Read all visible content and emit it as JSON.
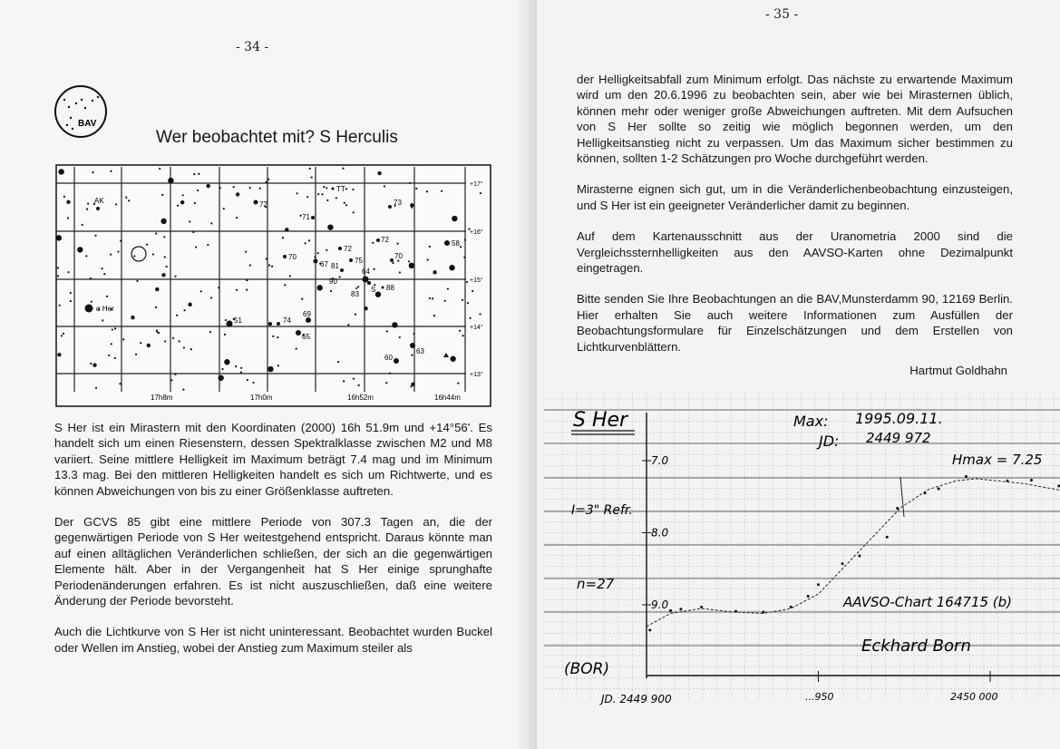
{
  "left_page": {
    "page_number": "- 34 -",
    "logo": {
      "text": "BAV"
    },
    "title": "Wer beobachtet mit?  S Herculis",
    "star_chart": {
      "dec_labels": [
        "+17°",
        "+16°",
        "+15°",
        "+14°",
        "+13°"
      ],
      "ra_labels": [
        "17h8m",
        "17h0m",
        "16h52m",
        "16h44m"
      ],
      "star_labels": [
        "AK",
        "72",
        "TT",
        "73",
        "71",
        "72",
        "58",
        "72",
        "70",
        "67",
        "75",
        "70",
        "81",
        "64",
        "90",
        "S",
        "83",
        "88",
        "α Her",
        "51",
        "74",
        "69",
        "65",
        "63",
        "60"
      ]
    },
    "paragraphs": [
      "S Her ist ein Mirastern mit den Koordinaten (2000) 16h 51.9m und +14°56'. Es handelt sich um einen Riesenstern, dessen Spektralklasse zwischen M2 und M8 variiert. Seine mittlere Helligkeit im Maximum beträgt 7.4 mag und im Minimum 13.3 mag. Bei den mittleren Helligkeiten handelt es sich um Richtwerte, und es können Abweichungen von bis zu einer Größenklasse auftreten.",
      "Der GCVS 85 gibt eine mittlere Periode von 307.3 Tagen an, die der gegenwärtigen Periode von S Her weitestgehend entspricht. Daraus könnte man auf einen alltäglichen Veränderlichen schließen, der sich an die gegenwärtigen Elemente hält. Aber in der Vergangenheit hat S Her einige sprunghafte Periodenänderungen erfahren. Es ist nicht auszuschließen, daß eine weitere Änderung der Periode bevorsteht.",
      "Auch die Lichtkurve von S Her ist nicht uninteressant. Beobachtet wurden Buckel oder Wellen im Anstieg, wobei der Anstieg zum Maximum steiler als"
    ]
  },
  "right_page": {
    "page_number": "- 35 -",
    "paragraphs": [
      "der Helligkeitsabfall zum Minimum erfolgt. Das nächste zu erwartende Maximum wird um den 20.6.1996 zu beobachten sein, aber wie bei Mirasternen üblich, können mehr oder weniger große Abweichungen auftreten. Mit dem Aufsuchen von S Her sollte so zeitig wie möglich begonnen werden, um den Helligkeitsanstieg nicht zu verpassen. Um das Maximum sicher bestimmen zu können, sollten 1-2 Schätzungen pro Woche durchgeführt werden.",
      "Mirasterne eignen sich gut, um in die Veränderlichenbeobachtung einzusteigen, und S Her ist ein geeigneter Veränderlicher damit zu beginnen.",
      "Auf dem Kartenausschnitt aus der Uranometria 2000 sind die Vergleichssternhelligkeiten aus den AAVSO-Karten ohne Dezimalpunkt eingetragen.",
      "Bitte senden Sie Ihre Beobachtungen an die BAV,Munsterdamm 90, 12169 Berlin. Hier erhalten Sie auch weitere Informationen zum Ausfüllen der Beobachtungsformulare für Einzelschätzungen und dem Erstellen von Lichtkurvenblättern."
    ],
    "author": "Hartmut Goldhahn",
    "light_curve": {
      "star": "S Her",
      "max_label": "Max:",
      "max_date": "1995.09.11.",
      "jd_label": "JD:",
      "jd_value": "2449 972",
      "hmax": "Hmax = 7.25",
      "instrument": "I=3\" Refr.",
      "n": "n=27",
      "chart": "AAVSO-Chart 164715 (b)",
      "observer": "Eckhard Born",
      "observer_code": "(BOR)",
      "y_ticks": [
        "7.0",
        "8.0",
        "9.0"
      ],
      "x_ticks": [
        "JD. 2449 900",
        "...950",
        "2450 000"
      ]
    }
  }
}
